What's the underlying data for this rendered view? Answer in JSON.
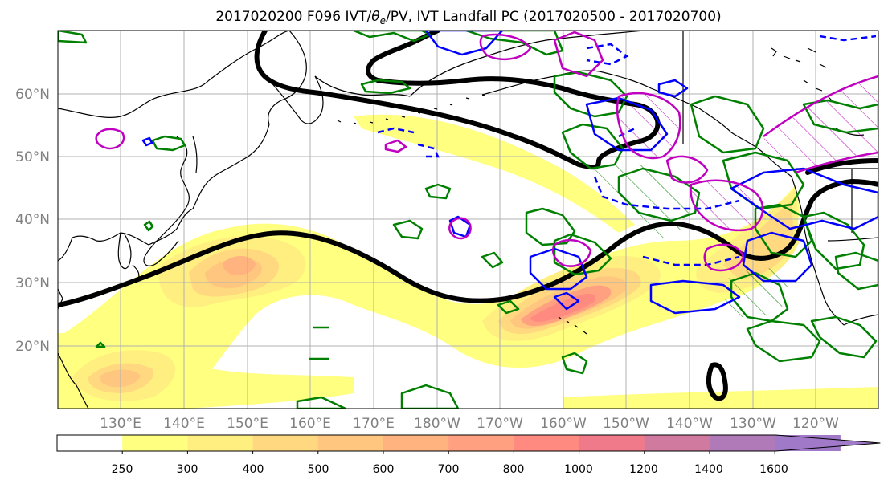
{
  "title_main": "2017020200 F096 IVT/",
  "title_theta": "θ",
  "title_sub": "e",
  "title_rest": "/PV, IVT Landfall PC (2017020500 - 2017020700)",
  "lat_labels": [
    "60°N",
    "50°N",
    "40°N",
    "30°N",
    "20°N"
  ],
  "lon_labels": [
    "130°E",
    "140°E",
    "150°E",
    "160°E",
    "170°E",
    "180°W",
    "170°W",
    "160°W",
    "150°W",
    "140°W",
    "130°W",
    "120°W"
  ],
  "colorbar": {
    "ticks": [
      "250",
      "300",
      "400",
      "500",
      "600",
      "700",
      "800",
      "1000",
      "1200",
      "1400",
      "1600"
    ],
    "colors": [
      "#ffffff",
      "#ffff80",
      "#ffef80",
      "#ffd880",
      "#ffc680",
      "#ffb480",
      "#ffa080",
      "#ff8a80",
      "#f07a8a",
      "#d07aa0",
      "#b07ab8",
      "#a07ac8"
    ]
  },
  "chart_data": {
    "type": "map",
    "fields": [
      "IVT (shaded)",
      "theta_e (contours)",
      "PV (contours)",
      "IVT Landfall PC (hatched)"
    ],
    "extent": {
      "lon": [
        120,
        250
      ],
      "lat": [
        10,
        70
      ]
    }
  }
}
